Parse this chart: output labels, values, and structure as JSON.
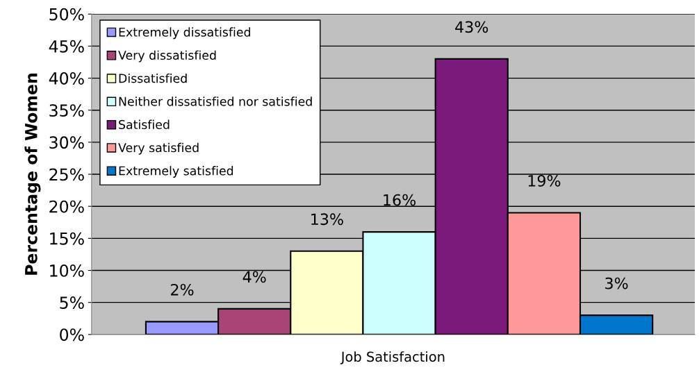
{
  "chart_data": {
    "type": "bar",
    "xlabel": "Job Satisfaction",
    "ylabel": "Percentage of Women",
    "categories": [
      null
    ],
    "series": [
      {
        "name": "Extremely dissatisfied",
        "color": "#9999ff",
        "values": [
          2
        ],
        "value_labels": [
          "2%"
        ]
      },
      {
        "name": "Very dissatisfied",
        "color": "#aa4477",
        "values": [
          4
        ],
        "value_labels": [
          "4%"
        ]
      },
      {
        "name": "Dissatisfied",
        "color": "#ffffcc",
        "values": [
          13
        ],
        "value_labels": [
          "13%"
        ]
      },
      {
        "name": "Neither dissatisfied nor satisfied",
        "color": "#ccffff",
        "values": [
          16
        ],
        "value_labels": [
          "16%"
        ]
      },
      {
        "name": "Satisfied",
        "color": "#7b1a7b",
        "values": [
          43
        ],
        "value_labels": [
          "43%"
        ]
      },
      {
        "name": "Very satisfied",
        "color": "#ff9999",
        "values": [
          19
        ],
        "value_labels": [
          "19%"
        ]
      },
      {
        "name": "Extremely satisfied",
        "color": "#0077cc",
        "values": [
          3
        ],
        "value_labels": [
          "3%"
        ]
      }
    ],
    "ylim": [
      0,
      50
    ],
    "yticks": [
      {
        "value": 0,
        "label": "0%"
      },
      {
        "value": 5,
        "label": "5%"
      },
      {
        "value": 10,
        "label": "10%"
      },
      {
        "value": 15,
        "label": "15%"
      },
      {
        "value": 20,
        "label": "20%"
      },
      {
        "value": 25,
        "label": "25%"
      },
      {
        "value": 30,
        "label": "30%"
      },
      {
        "value": 35,
        "label": "35%"
      },
      {
        "value": 40,
        "label": "40%"
      },
      {
        "value": 45,
        "label": "45%"
      },
      {
        "value": 50,
        "label": "50%"
      }
    ],
    "grid": "y",
    "legend": "top left"
  }
}
